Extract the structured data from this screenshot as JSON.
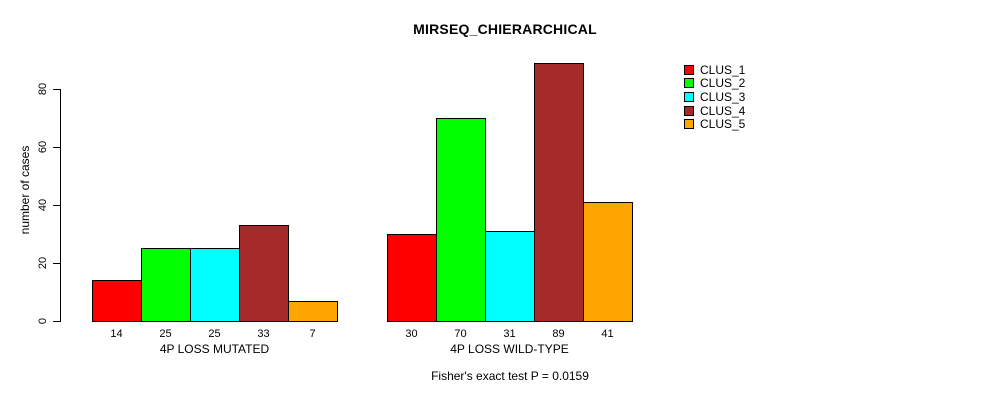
{
  "chart_data": {
    "type": "bar",
    "title": "MIRSEQ_CHIERARCHICAL",
    "ylabel": "number of cases",
    "xlabel": "",
    "yticks": [
      0,
      20,
      40,
      60,
      80
    ],
    "ylim": [
      0,
      92
    ],
    "grid": false,
    "legend_position": "right",
    "bar_value_labels_shown": true,
    "series_names": [
      "CLUS_1",
      "CLUS_2",
      "CLUS_3",
      "CLUS_4",
      "CLUS_5"
    ],
    "series_colors": [
      "#FF0000",
      "#00FF00",
      "#00FFFF",
      "#A52A2A",
      "#FFA500"
    ],
    "groups": [
      {
        "label": "4P LOSS MUTATED",
        "values": [
          14,
          25,
          25,
          33,
          7
        ]
      },
      {
        "label": "4P LOSS WILD-TYPE",
        "values": [
          30,
          70,
          31,
          89,
          41
        ]
      }
    ],
    "annotation": "Fisher's exact test P = 0.0159"
  },
  "colors": {
    "background": "#FFFFFF",
    "axis": "#000000",
    "text": "#000000",
    "bar_border": "#000000"
  }
}
